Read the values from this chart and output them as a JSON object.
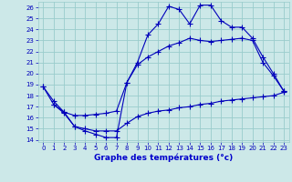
{
  "title": "Graphe des températures (°c)",
  "bg_color": "#cce8e8",
  "grid_color": "#99cccc",
  "line_color": "#0000bb",
  "xlabel_color": "#0000cc",
  "xlim": [
    -0.5,
    23.5
  ],
  "ylim": [
    13.8,
    26.5
  ],
  "xticks": [
    0,
    1,
    2,
    3,
    4,
    5,
    6,
    7,
    8,
    9,
    10,
    11,
    12,
    13,
    14,
    15,
    16,
    17,
    18,
    19,
    20,
    21,
    22,
    23
  ],
  "yticks": [
    14,
    15,
    16,
    17,
    18,
    19,
    20,
    21,
    22,
    23,
    24,
    25,
    26
  ],
  "line1_x": [
    0,
    1,
    2,
    3,
    4,
    5,
    6,
    7,
    8,
    9,
    10,
    11,
    12,
    13,
    14,
    15,
    16,
    17,
    18,
    19,
    20,
    21,
    22,
    23
  ],
  "line1_y": [
    18.8,
    17.2,
    16.5,
    15.2,
    14.8,
    14.5,
    14.2,
    14.2,
    19.2,
    21.0,
    23.5,
    24.5,
    26.1,
    25.8,
    24.5,
    26.2,
    26.2,
    24.8,
    24.2,
    24.2,
    23.2,
    21.5,
    20.0,
    18.4
  ],
  "line2_x": [
    0,
    1,
    2,
    3,
    4,
    5,
    6,
    7,
    8,
    9,
    10,
    11,
    12,
    13,
    14,
    15,
    16,
    17,
    18,
    19,
    20,
    21,
    22,
    23
  ],
  "line2_y": [
    18.8,
    17.5,
    16.5,
    16.2,
    16.2,
    16.3,
    16.4,
    16.6,
    19.2,
    20.8,
    21.5,
    22.0,
    22.5,
    22.8,
    23.2,
    23.0,
    22.9,
    23.0,
    23.1,
    23.2,
    23.0,
    21.0,
    19.8,
    18.4
  ],
  "line3_x": [
    1,
    2,
    3,
    4,
    5,
    6,
    7,
    8,
    9,
    10,
    11,
    12,
    13,
    14,
    15,
    16,
    17,
    18,
    19,
    20,
    21,
    22,
    23
  ],
  "line3_y": [
    17.2,
    16.4,
    15.2,
    15.0,
    14.8,
    14.8,
    14.8,
    15.5,
    16.1,
    16.4,
    16.6,
    16.7,
    16.9,
    17.0,
    17.2,
    17.3,
    17.5,
    17.6,
    17.7,
    17.8,
    17.9,
    18.0,
    18.3
  ]
}
